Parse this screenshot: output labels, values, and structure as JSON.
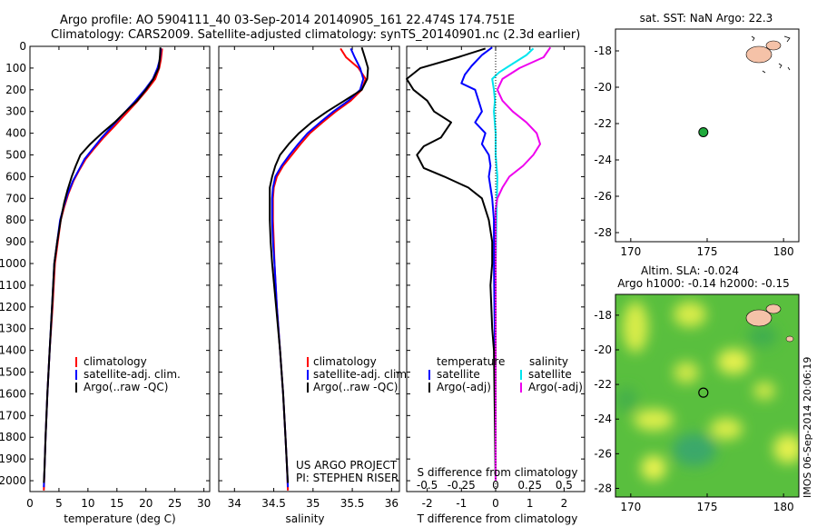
{
  "header": {
    "line1": "Argo profile: AO 5904111_40 03-Sep-2014 20140905_161 22.474S 174.751E",
    "line2": "Climatology: CARS2009. Satellite-adjusted climatology: synTS_20140901.nc (2.3d earlier)"
  },
  "colors": {
    "climatology": "#ff0000",
    "satellite": "#0000ff",
    "argo": "#000000",
    "salinity_satellite": "#00e5ee",
    "salinity_argo": "#ee00ee",
    "land": "#f5c2a8",
    "float_marker": "#1faa3c"
  },
  "legends": {
    "temperature": [
      "climatology",
      "satellite-adj. clim.",
      "Argo(..raw -QC)"
    ],
    "salinity": [
      "climatology",
      "satellite-adj. clim.",
      "Argo(..raw -QC)"
    ],
    "difference": {
      "temperature_head": "temperature",
      "salinity_head": "salinity",
      "temperature_items": [
        "satellite",
        "Argo(-adj)"
      ],
      "salinity_items": [
        "satellite",
        "Argo(-adj)"
      ]
    }
  },
  "project": {
    "line1": "US ARGO PROJECT",
    "line2": "PI: STEPHEN RISER"
  },
  "map_top": {
    "title": "sat. SST: NaN Argo: 22.3"
  },
  "map_bottom": {
    "title1": "Altim. SLA: -0.024",
    "title2": "Argo h1000: -0.14 h2000: -0.15"
  },
  "side_stamp": "IMOS 06-Sep-2014 20:06:19",
  "chart_data": [
    {
      "type": "line",
      "id": "temperature",
      "xlabel": "temperature (deg C)",
      "xlim": [
        0,
        31
      ],
      "ylim": [
        2050,
        0
      ],
      "x_ticks": [
        0,
        5,
        10,
        15,
        20,
        25,
        30
      ],
      "y_ticks": [
        0,
        100,
        200,
        300,
        400,
        500,
        600,
        700,
        800,
        900,
        1000,
        1100,
        1200,
        1300,
        1400,
        1500,
        1600,
        1700,
        1800,
        1900,
        2000
      ],
      "series": [
        {
          "name": "climatology",
          "points": [
            [
              22.8,
              10
            ],
            [
              22.6,
              60
            ],
            [
              22.3,
              100
            ],
            [
              21.6,
              150
            ],
            [
              20.2,
              200
            ],
            [
              18.3,
              260
            ],
            [
              16.2,
              320
            ],
            [
              14.5,
              370
            ],
            [
              12.7,
              420
            ],
            [
              11.1,
              470
            ],
            [
              9.6,
              520
            ],
            [
              8.5,
              570
            ],
            [
              7.5,
              620
            ],
            [
              6.6,
              680
            ],
            [
              5.9,
              740
            ],
            [
              5.3,
              800
            ],
            [
              4.8,
              900
            ],
            [
              4.3,
              1000
            ],
            [
              3.9,
              1200
            ],
            [
              3.4,
              1400
            ],
            [
              3.0,
              1600
            ],
            [
              2.7,
              1800
            ],
            [
              2.5,
              1950
            ],
            [
              2.4,
              2045
            ]
          ]
        },
        {
          "name": "satellite-adj. clim.",
          "points": [
            [
              22.6,
              10
            ],
            [
              22.4,
              60
            ],
            [
              22.0,
              100
            ],
            [
              21.2,
              150
            ],
            [
              19.8,
              200
            ],
            [
              17.9,
              260
            ],
            [
              15.8,
              320
            ],
            [
              14.1,
              370
            ],
            [
              12.4,
              420
            ],
            [
              10.9,
              470
            ],
            [
              9.4,
              520
            ],
            [
              8.4,
              570
            ],
            [
              7.4,
              620
            ],
            [
              6.5,
              680
            ],
            [
              5.8,
              740
            ],
            [
              5.2,
              800
            ],
            [
              4.7,
              900
            ],
            [
              4.2,
              1000
            ],
            [
              3.8,
              1200
            ],
            [
              3.4,
              1400
            ],
            [
              3.0,
              1600
            ],
            [
              2.7,
              1800
            ],
            [
              2.5,
              1950
            ],
            [
              2.4,
              2030
            ]
          ]
        },
        {
          "name": "Argo(..raw -QC)",
          "points": [
            [
              22.5,
              5
            ],
            [
              22.4,
              50
            ],
            [
              22.2,
              100
            ],
            [
              21.3,
              150
            ],
            [
              20.0,
              200
            ],
            [
              18.5,
              250
            ],
            [
              16.5,
              300
            ],
            [
              14.6,
              350
            ],
            [
              12.4,
              400
            ],
            [
              10.4,
              450
            ],
            [
              8.7,
              500
            ],
            [
              7.9,
              550
            ],
            [
              7.2,
              600
            ],
            [
              6.5,
              660
            ],
            [
              5.9,
              720
            ],
            [
              5.3,
              800
            ],
            [
              4.7,
              900
            ],
            [
              4.2,
              1000
            ],
            [
              3.8,
              1200
            ],
            [
              3.4,
              1400
            ],
            [
              3.0,
              1600
            ],
            [
              2.7,
              1800
            ],
            [
              2.5,
              1950
            ],
            [
              2.4,
              2010
            ]
          ]
        }
      ]
    },
    {
      "type": "line",
      "id": "salinity",
      "xlabel": "salinity",
      "xlim": [
        33.8,
        36.1
      ],
      "ylim": [
        2050,
        0
      ],
      "x_ticks": [
        34,
        34.5,
        35,
        35.5,
        36
      ],
      "series": [
        {
          "name": "climatology",
          "points": [
            [
              35.35,
              10
            ],
            [
              35.42,
              50
            ],
            [
              35.58,
              100
            ],
            [
              35.67,
              150
            ],
            [
              35.62,
              200
            ],
            [
              35.48,
              250
            ],
            [
              35.29,
              300
            ],
            [
              35.12,
              350
            ],
            [
              34.96,
              400
            ],
            [
              34.84,
              450
            ],
            [
              34.73,
              500
            ],
            [
              34.62,
              550
            ],
            [
              34.54,
              600
            ],
            [
              34.5,
              650
            ],
            [
              34.49,
              700
            ],
            [
              34.49,
              800
            ],
            [
              34.5,
              900
            ],
            [
              34.51,
              1000
            ],
            [
              34.54,
              1200
            ],
            [
              34.58,
              1400
            ],
            [
              34.62,
              1600
            ],
            [
              34.65,
              1800
            ],
            [
              34.67,
              1950
            ],
            [
              34.68,
              2045
            ]
          ]
        },
        {
          "name": "satellite-adj. clim.",
          "points": [
            [
              35.48,
              10
            ],
            [
              35.53,
              50
            ],
            [
              35.6,
              100
            ],
            [
              35.64,
              150
            ],
            [
              35.6,
              200
            ],
            [
              35.45,
              250
            ],
            [
              35.26,
              300
            ],
            [
              35.09,
              350
            ],
            [
              34.93,
              400
            ],
            [
              34.81,
              450
            ],
            [
              34.7,
              500
            ],
            [
              34.6,
              550
            ],
            [
              34.52,
              600
            ],
            [
              34.49,
              650
            ],
            [
              34.48,
              700
            ],
            [
              34.48,
              800
            ],
            [
              34.49,
              900
            ],
            [
              34.51,
              1000
            ],
            [
              34.54,
              1200
            ],
            [
              34.58,
              1400
            ],
            [
              34.62,
              1600
            ],
            [
              34.65,
              1800
            ],
            [
              34.67,
              1950
            ],
            [
              34.68,
              2030
            ]
          ]
        },
        {
          "name": "Argo(..raw -QC)",
          "points": [
            [
              35.62,
              5
            ],
            [
              35.66,
              50
            ],
            [
              35.7,
              100
            ],
            [
              35.69,
              150
            ],
            [
              35.62,
              200
            ],
            [
              35.4,
              250
            ],
            [
              35.18,
              300
            ],
            [
              34.98,
              350
            ],
            [
              34.82,
              400
            ],
            [
              34.69,
              450
            ],
            [
              34.58,
              500
            ],
            [
              34.52,
              550
            ],
            [
              34.48,
              600
            ],
            [
              34.45,
              650
            ],
            [
              34.45,
              700
            ],
            [
              34.45,
              800
            ],
            [
              34.46,
              900
            ],
            [
              34.48,
              1000
            ],
            [
              34.53,
              1200
            ],
            [
              34.58,
              1400
            ],
            [
              34.62,
              1600
            ],
            [
              34.65,
              1800
            ],
            [
              34.67,
              1950
            ],
            [
              34.68,
              2010
            ]
          ]
        }
      ]
    },
    {
      "type": "line",
      "id": "difference",
      "xlabel": "T difference from climatology",
      "xlabel_top": "S difference from climatology",
      "xlim": [
        -2.6,
        2.6
      ],
      "ylim": [
        2050,
        0
      ],
      "x_ticks": [
        -2,
        -1,
        0,
        1,
        2
      ],
      "x_ticks_top": [
        -0.5,
        -0.25,
        0,
        0.25,
        0.5
      ],
      "series": [
        {
          "name": "temperature satellite",
          "points": [
            [
              -0.1,
              5
            ],
            [
              -0.4,
              40
            ],
            [
              -0.7,
              90
            ],
            [
              -0.9,
              130
            ],
            [
              -1.0,
              170
            ],
            [
              -0.6,
              200
            ],
            [
              -0.5,
              250
            ],
            [
              -0.4,
              300
            ],
            [
              -0.6,
              350
            ],
            [
              -0.3,
              400
            ],
            [
              -0.4,
              450
            ],
            [
              -0.2,
              500
            ],
            [
              -0.15,
              550
            ],
            [
              -0.2,
              600
            ],
            [
              -0.1,
              700
            ],
            [
              -0.05,
              800
            ],
            [
              -0.05,
              1000
            ],
            [
              -0.02,
              1400
            ],
            [
              0.0,
              2000
            ]
          ]
        },
        {
          "name": "temperature Argo(-adj)",
          "points": [
            [
              -0.3,
              10
            ],
            [
              -1.1,
              50
            ],
            [
              -2.2,
              100
            ],
            [
              -2.6,
              150
            ],
            [
              -2.4,
              200
            ],
            [
              -2.0,
              250
            ],
            [
              -1.8,
              300
            ],
            [
              -1.3,
              350
            ],
            [
              -1.6,
              420
            ],
            [
              -2.1,
              460
            ],
            [
              -2.3,
              500
            ],
            [
              -2.1,
              560
            ],
            [
              -1.5,
              600
            ],
            [
              -0.8,
              650
            ],
            [
              -0.4,
              700
            ],
            [
              -0.2,
              800
            ],
            [
              -0.1,
              900
            ],
            [
              -0.1,
              1000
            ],
            [
              -0.15,
              1100
            ],
            [
              -0.1,
              1300
            ],
            [
              -0.05,
              1400
            ],
            [
              0.0,
              2000
            ]
          ]
        },
        {
          "name": "salinity satellite",
          "points": [
            [
              1.1,
              10
            ],
            [
              0.9,
              40
            ],
            [
              0.5,
              80
            ],
            [
              0.1,
              120
            ],
            [
              -0.1,
              150
            ],
            [
              -0.05,
              200
            ],
            [
              -0.02,
              250
            ],
            [
              -0.05,
              300
            ],
            [
              0.0,
              400
            ],
            [
              0.0,
              500
            ],
            [
              0.05,
              600
            ],
            [
              0.02,
              800
            ],
            [
              0.0,
              1000
            ],
            [
              0.0,
              2000
            ]
          ]
        },
        {
          "name": "salinity Argo(-adj)",
          "points": [
            [
              1.6,
              5
            ],
            [
              1.4,
              50
            ],
            [
              0.7,
              100
            ],
            [
              0.2,
              150
            ],
            [
              0.05,
              200
            ],
            [
              0.2,
              250
            ],
            [
              0.5,
              300
            ],
            [
              0.9,
              350
            ],
            [
              1.2,
              400
            ],
            [
              1.3,
              450
            ],
            [
              1.1,
              500
            ],
            [
              0.8,
              550
            ],
            [
              0.4,
              600
            ],
            [
              0.2,
              650
            ],
            [
              0.05,
              700
            ],
            [
              0.0,
              750
            ],
            [
              0.0,
              800
            ],
            [
              0.0,
              1000
            ],
            [
              0.0,
              1400
            ],
            [
              0.0,
              2000
            ]
          ]
        }
      ]
    },
    {
      "type": "scatter",
      "id": "map_top",
      "title": "sat. SST: NaN Argo: 22.3",
      "xlim": [
        169,
        181
      ],
      "ylim": [
        -28.5,
        -16.8
      ],
      "x_ticks": [
        170,
        175,
        180
      ],
      "y_ticks": [
        -28,
        -26,
        -24,
        -22,
        -20,
        -18
      ],
      "points": [
        [
          174.751,
          -22.474
        ]
      ]
    },
    {
      "type": "heatmap",
      "id": "map_bottom",
      "title": "Altim. SLA: -0.024",
      "xlim": [
        169,
        181
      ],
      "ylim": [
        -28.5,
        -16.8
      ],
      "x_ticks": [
        170,
        175,
        180
      ],
      "y_ticks": [
        -28,
        -26,
        -24,
        -22,
        -20,
        -18
      ],
      "points": [
        [
          174.751,
          -22.474
        ]
      ]
    }
  ]
}
